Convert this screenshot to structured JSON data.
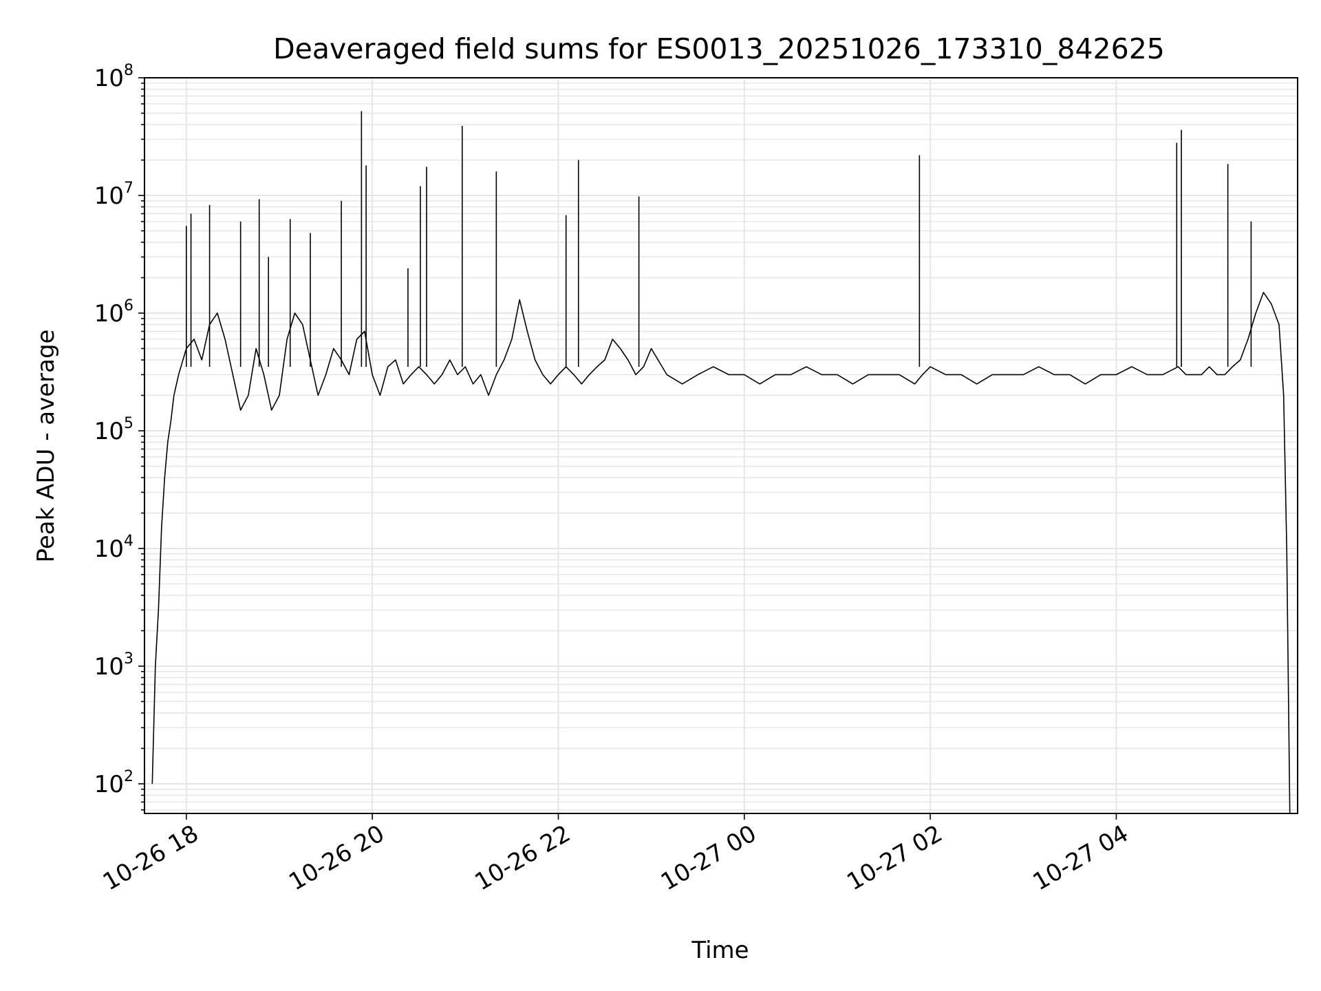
{
  "chart_data": {
    "type": "line",
    "title": "Deaveraged field sums for ES0013_20251026_173310_842625",
    "xlabel": "Time",
    "ylabel": "Peak ADU - average",
    "yscale": "log",
    "xlim": [
      "2025-10-26 17:33",
      "2025-10-27 05:57"
    ],
    "ylim": [
      56,
      100000000
    ],
    "x_ticks": [
      {
        "value": "2025-10-26 18:00",
        "label": "10-26 18"
      },
      {
        "value": "2025-10-26 20:00",
        "label": "10-26 20"
      },
      {
        "value": "2025-10-26 22:00",
        "label": "10-26 22"
      },
      {
        "value": "2025-10-27 00:00",
        "label": "10-27 00"
      },
      {
        "value": "2025-10-27 02:00",
        "label": "10-27 02"
      },
      {
        "value": "2025-10-27 04:00",
        "label": "10-27 04"
      }
    ],
    "y_ticks": [
      {
        "value": 100,
        "base": "10",
        "exp": "2"
      },
      {
        "value": 1000,
        "base": "10",
        "exp": "3"
      },
      {
        "value": 10000,
        "base": "10",
        "exp": "4"
      },
      {
        "value": 100000,
        "base": "10",
        "exp": "5"
      },
      {
        "value": 1000000,
        "base": "10",
        "exp": "6"
      },
      {
        "value": 10000000,
        "base": "10",
        "exp": "7"
      },
      {
        "value": 100000000,
        "base": "10",
        "exp": "8"
      }
    ],
    "grid": "major and minor",
    "line_color": "#000000",
    "grid_color": "#e6e6e6",
    "series": [
      {
        "x": [
          "2025-10-26 17:38",
          "2025-10-26 17:40",
          "2025-10-26 17:42",
          "2025-10-26 17:44",
          "2025-10-26 17:46",
          "2025-10-26 17:48",
          "2025-10-26 17:50",
          "2025-10-26 17:52",
          "2025-10-26 17:55",
          "2025-10-26 18:00",
          "2025-10-26 18:05",
          "2025-10-26 18:10",
          "2025-10-26 18:15",
          "2025-10-26 18:20",
          "2025-10-26 18:25",
          "2025-10-26 18:30",
          "2025-10-26 18:35",
          "2025-10-26 18:40",
          "2025-10-26 18:45",
          "2025-10-26 18:50",
          "2025-10-26 18:55",
          "2025-10-26 19:00",
          "2025-10-26 19:05",
          "2025-10-26 19:10",
          "2025-10-26 19:15",
          "2025-10-26 19:20",
          "2025-10-26 19:25",
          "2025-10-26 19:30",
          "2025-10-26 19:35",
          "2025-10-26 19:40",
          "2025-10-26 19:45",
          "2025-10-26 19:50",
          "2025-10-26 19:55",
          "2025-10-26 20:00",
          "2025-10-26 20:05",
          "2025-10-26 20:10",
          "2025-10-26 20:15",
          "2025-10-26 20:20",
          "2025-10-26 20:25",
          "2025-10-26 20:30",
          "2025-10-26 20:35",
          "2025-10-26 20:40",
          "2025-10-26 20:45",
          "2025-10-26 20:50",
          "2025-10-26 20:55",
          "2025-10-26 21:00",
          "2025-10-26 21:05",
          "2025-10-26 21:10",
          "2025-10-26 21:15",
          "2025-10-26 21:20",
          "2025-10-26 21:25",
          "2025-10-26 21:30",
          "2025-10-26 21:35",
          "2025-10-26 21:40",
          "2025-10-26 21:45",
          "2025-10-26 21:50",
          "2025-10-26 21:55",
          "2025-10-26 22:00",
          "2025-10-26 22:05",
          "2025-10-26 22:10",
          "2025-10-26 22:15",
          "2025-10-26 22:20",
          "2025-10-26 22:25",
          "2025-10-26 22:30",
          "2025-10-26 22:35",
          "2025-10-26 22:40",
          "2025-10-26 22:45",
          "2025-10-26 22:50",
          "2025-10-26 22:55",
          "2025-10-26 23:00",
          "2025-10-26 23:10",
          "2025-10-26 23:20",
          "2025-10-26 23:30",
          "2025-10-26 23:40",
          "2025-10-26 23:50",
          "2025-10-27 00:00",
          "2025-10-27 00:10",
          "2025-10-27 00:20",
          "2025-10-27 00:30",
          "2025-10-27 00:40",
          "2025-10-27 00:50",
          "2025-10-27 01:00",
          "2025-10-27 01:10",
          "2025-10-27 01:20",
          "2025-10-27 01:30",
          "2025-10-27 01:40",
          "2025-10-27 01:50",
          "2025-10-27 01:55",
          "2025-10-27 02:00",
          "2025-10-27 02:10",
          "2025-10-27 02:20",
          "2025-10-27 02:30",
          "2025-10-27 02:40",
          "2025-10-27 02:50",
          "2025-10-27 03:00",
          "2025-10-27 03:10",
          "2025-10-27 03:20",
          "2025-10-27 03:30",
          "2025-10-27 03:40",
          "2025-10-27 03:50",
          "2025-10-27 04:00",
          "2025-10-27 04:10",
          "2025-10-27 04:20",
          "2025-10-27 04:30",
          "2025-10-27 04:40",
          "2025-10-27 04:45",
          "2025-10-27 04:50",
          "2025-10-27 04:55",
          "2025-10-27 05:00",
          "2025-10-27 05:05",
          "2025-10-27 05:10",
          "2025-10-27 05:15",
          "2025-10-27 05:20",
          "2025-10-27 05:25",
          "2025-10-27 05:30",
          "2025-10-27 05:35",
          "2025-10-27 05:40",
          "2025-10-27 05:45",
          "2025-10-27 05:48",
          "2025-10-27 05:50",
          "2025-10-27 05:52"
        ],
        "values": [
          100,
          1000,
          3000,
          15000,
          40000,
          80000,
          120000,
          200000,
          300000,
          500000,
          600000,
          400000,
          800000,
          1000000,
          600000,
          300000,
          150000,
          200000,
          500000,
          300000,
          150000,
          200000,
          600000,
          1000000,
          800000,
          400000,
          200000,
          300000,
          500000,
          400000,
          300000,
          600000,
          700000,
          300000,
          200000,
          350000,
          400000,
          250000,
          300000,
          350000,
          300000,
          250000,
          300000,
          400000,
          300000,
          350000,
          250000,
          300000,
          200000,
          300000,
          400000,
          600000,
          1300000,
          700000,
          400000,
          300000,
          250000,
          300000,
          350000,
          300000,
          250000,
          300000,
          350000,
          400000,
          600000,
          500000,
          400000,
          300000,
          350000,
          500000,
          300000,
          250000,
          300000,
          350000,
          300000,
          300000,
          250000,
          300000,
          300000,
          350000,
          300000,
          300000,
          250000,
          300000,
          300000,
          300000,
          250000,
          300000,
          350000,
          300000,
          300000,
          250000,
          300000,
          300000,
          300000,
          350000,
          300000,
          300000,
          250000,
          300000,
          300000,
          350000,
          300000,
          300000,
          350000,
          300000,
          300000,
          300000,
          350000,
          300000,
          300000,
          350000,
          400000,
          600000,
          1000000,
          1500000,
          1200000,
          800000,
          200000,
          10000,
          56
        ]
      }
    ],
    "spikes": [
      {
        "x": "2025-10-26 18:00",
        "value": 5500000
      },
      {
        "x": "2025-10-26 18:03",
        "value": 7000000
      },
      {
        "x": "2025-10-26 18:15",
        "value": 8300000
      },
      {
        "x": "2025-10-26 18:35",
        "value": 6000000
      },
      {
        "x": "2025-10-26 18:47",
        "value": 9300000
      },
      {
        "x": "2025-10-26 18:53",
        "value": 3000000
      },
      {
        "x": "2025-10-26 19:07",
        "value": 6300000
      },
      {
        "x": "2025-10-26 19:20",
        "value": 4800000
      },
      {
        "x": "2025-10-26 19:40",
        "value": 9000000
      },
      {
        "x": "2025-10-26 19:53",
        "value": 52000000
      },
      {
        "x": "2025-10-26 19:56",
        "value": 18000000
      },
      {
        "x": "2025-10-26 20:23",
        "value": 2400000
      },
      {
        "x": "2025-10-26 20:31",
        "value": 12000000
      },
      {
        "x": "2025-10-26 20:35",
        "value": 17500000
      },
      {
        "x": "2025-10-26 20:58",
        "value": 39000000
      },
      {
        "x": "2025-10-26 21:20",
        "value": 16000000
      },
      {
        "x": "2025-10-26 22:05",
        "value": 6800000
      },
      {
        "x": "2025-10-26 22:13",
        "value": 20000000
      },
      {
        "x": "2025-10-26 22:52",
        "value": 9800000
      },
      {
        "x": "2025-10-27 01:53",
        "value": 22000000
      },
      {
        "x": "2025-10-27 04:39",
        "value": 28000000
      },
      {
        "x": "2025-10-27 04:42",
        "value": 36000000
      },
      {
        "x": "2025-10-27 05:12",
        "value": 18500000
      },
      {
        "x": "2025-10-27 05:27",
        "value": 6000000
      }
    ]
  }
}
